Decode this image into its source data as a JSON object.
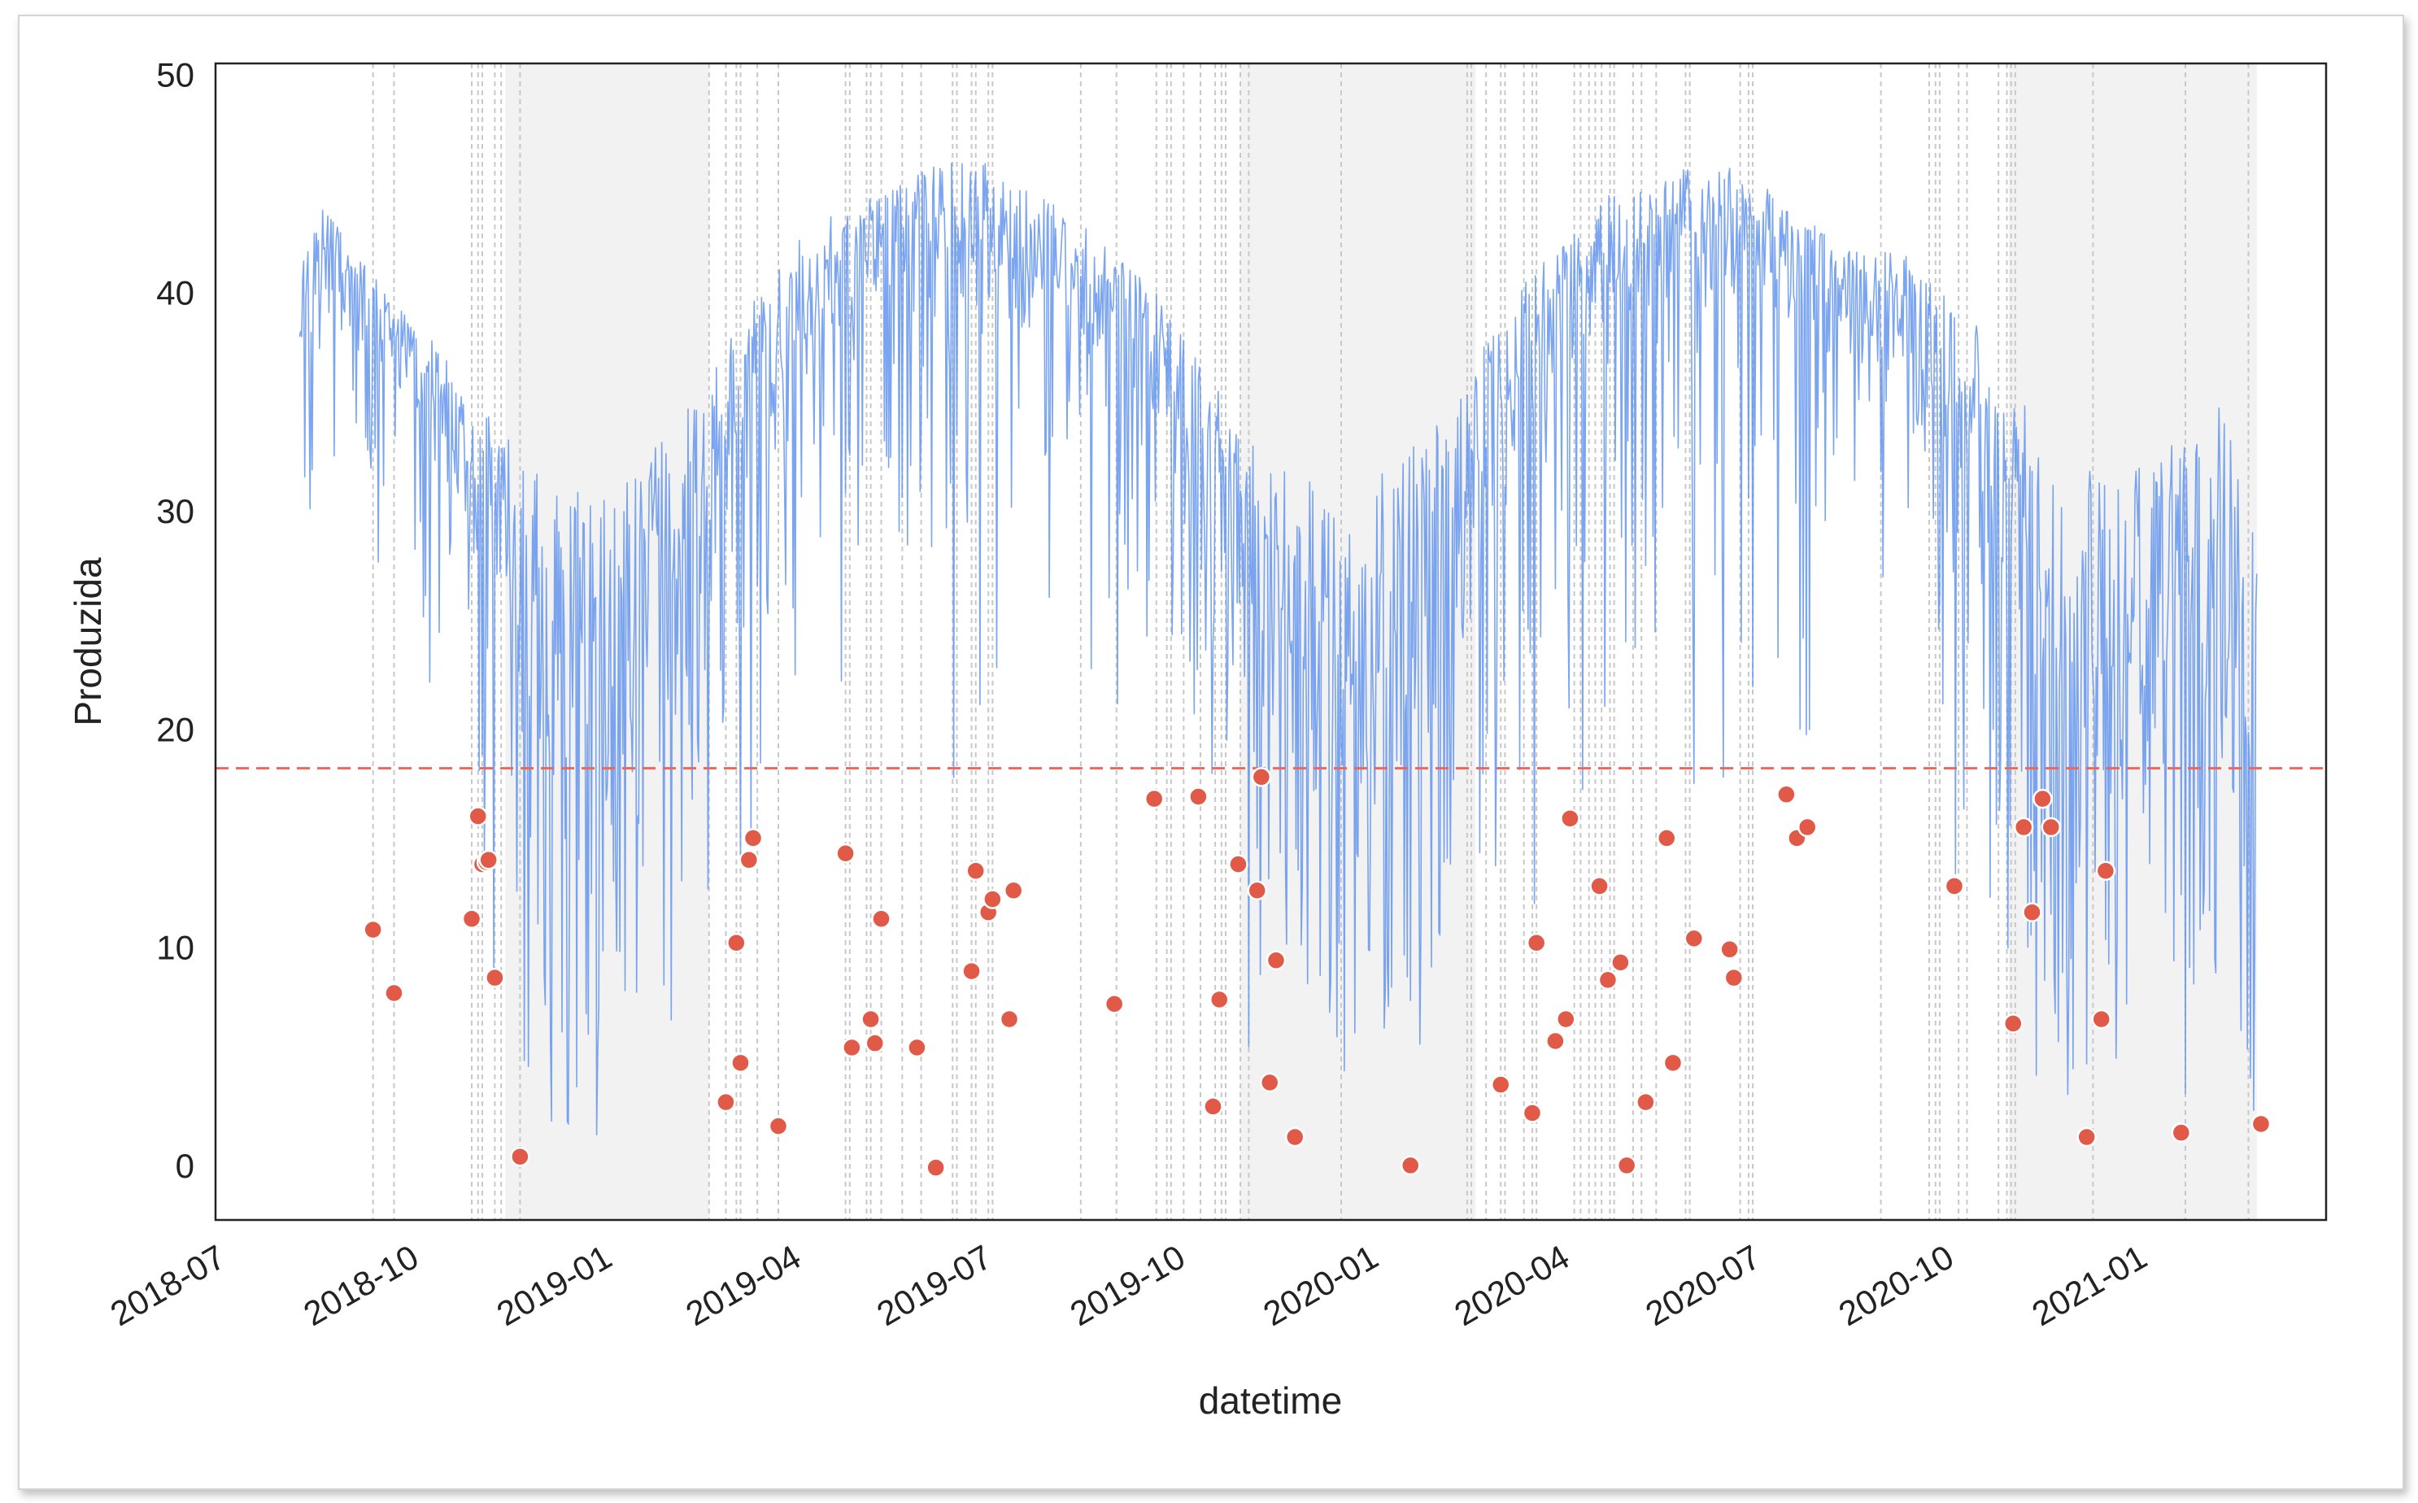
{
  "chart_data": {
    "type": "line",
    "xlabel": "datetime",
    "ylabel": "Produzida",
    "xlim": [
      "2018-07-01",
      "2021-04-01"
    ],
    "ylim": [
      -2.5,
      50.5
    ],
    "x_ticks": [
      "2018-07",
      "2018-10",
      "2019-01",
      "2019-04",
      "2019-07",
      "2019-10",
      "2020-01",
      "2020-04",
      "2020-07",
      "2020-10",
      "2021-01"
    ],
    "y_ticks": [
      0,
      10,
      20,
      30,
      40,
      50
    ],
    "grid": false,
    "legend": "none",
    "colors": {
      "series": "#6495ed",
      "anomaly": "#e05a47",
      "threshold": "#e66a5e",
      "shade": "#f2f2f2",
      "vline": "#c8c8c8"
    },
    "line_series": {
      "date_range": [
        "2018-08-10",
        "2021-02-27"
      ],
      "envelope_upper": [
        [
          "2018-08-10",
          41
        ],
        [
          "2018-08-20",
          44
        ],
        [
          "2018-09-05",
          42
        ],
        [
          "2018-09-25",
          39.5
        ],
        [
          "2018-10-15",
          37.5
        ],
        [
          "2018-11-01",
          35
        ],
        [
          "2018-11-20",
          34
        ],
        [
          "2018-12-10",
          31
        ],
        [
          "2019-01-01",
          31
        ],
        [
          "2019-02-01",
          34
        ],
        [
          "2019-02-20",
          36
        ],
        [
          "2019-03-15",
          40
        ],
        [
          "2019-04-05",
          43
        ],
        [
          "2019-04-25",
          44
        ],
        [
          "2019-05-20",
          45
        ],
        [
          "2019-06-25",
          46.5
        ],
        [
          "2019-07-20",
          45
        ],
        [
          "2019-08-20",
          43
        ],
        [
          "2019-09-15",
          41
        ],
        [
          "2019-10-05",
          38
        ],
        [
          "2019-10-25",
          35
        ],
        [
          "2019-11-20",
          32
        ],
        [
          "2019-12-15",
          31
        ],
        [
          "2020-01-10",
          32
        ],
        [
          "2020-02-01",
          34
        ],
        [
          "2020-02-25",
          38
        ],
        [
          "2020-03-20",
          41
        ],
        [
          "2020-04-15",
          44
        ],
        [
          "2020-05-15",
          45.5
        ],
        [
          "2020-06-20",
          46
        ],
        [
          "2020-07-20",
          44
        ],
        [
          "2020-08-20",
          42
        ],
        [
          "2020-09-10",
          42
        ],
        [
          "2020-09-25",
          40.5
        ],
        [
          "2020-10-15",
          39
        ],
        [
          "2020-11-01",
          36
        ],
        [
          "2020-11-20",
          33
        ],
        [
          "2020-12-20",
          32
        ],
        [
          "2021-01-15",
          33
        ],
        [
          "2021-02-10",
          35
        ],
        [
          "2021-02-27",
          29
        ]
      ],
      "envelope_lower": [
        [
          "2018-08-10",
          34
        ],
        [
          "2018-08-20",
          38
        ],
        [
          "2018-09-05",
          37
        ],
        [
          "2018-09-25",
          35
        ],
        [
          "2018-10-15",
          32
        ],
        [
          "2018-11-01",
          26
        ],
        [
          "2018-11-20",
          14
        ],
        [
          "2018-12-10",
          10
        ],
        [
          "2019-01-01",
          10
        ],
        [
          "2019-02-01",
          12
        ],
        [
          "2019-02-20",
          22
        ],
        [
          "2019-03-15",
          30
        ],
        [
          "2019-04-05",
          34
        ],
        [
          "2019-04-25",
          36
        ],
        [
          "2019-05-20",
          38
        ],
        [
          "2019-06-25",
          38
        ],
        [
          "2019-07-20",
          37
        ],
        [
          "2019-08-20",
          36
        ],
        [
          "2019-09-15",
          34
        ],
        [
          "2019-10-05",
          30
        ],
        [
          "2019-10-25",
          22
        ],
        [
          "2019-11-20",
          12
        ],
        [
          "2019-12-15",
          10
        ],
        [
          "2020-01-10",
          10
        ],
        [
          "2020-02-01",
          13
        ],
        [
          "2020-02-25",
          25
        ],
        [
          "2020-03-20",
          32
        ],
        [
          "2020-04-15",
          35
        ],
        [
          "2020-05-15",
          38
        ],
        [
          "2020-06-20",
          39
        ],
        [
          "2020-07-20",
          38
        ],
        [
          "2020-08-20",
          36
        ],
        [
          "2020-09-10",
          34
        ],
        [
          "2020-09-25",
          30
        ],
        [
          "2020-10-15",
          27
        ],
        [
          "2020-11-01",
          20
        ],
        [
          "2020-11-20",
          12
        ],
        [
          "2020-12-20",
          11
        ],
        [
          "2021-01-15",
          12
        ],
        [
          "2021-02-10",
          14
        ],
        [
          "2021-02-27",
          3
        ]
      ],
      "dip_depth": [
        [
          "2018-08-10",
          28
        ],
        [
          "2018-09-20",
          25
        ],
        [
          "2018-10-20",
          12
        ],
        [
          "2018-11-15",
          5
        ],
        [
          "2018-12-15",
          1
        ],
        [
          "2019-01-20",
          1
        ],
        [
          "2019-02-20",
          8
        ],
        [
          "2019-03-20",
          14
        ],
        [
          "2019-04-20",
          18
        ],
        [
          "2019-06-01",
          16
        ],
        [
          "2019-07-15",
          18
        ],
        [
          "2019-08-20",
          22
        ],
        [
          "2019-09-15",
          18
        ],
        [
          "2019-10-20",
          8
        ],
        [
          "2019-11-20",
          2
        ],
        [
          "2019-12-20",
          0.5
        ],
        [
          "2020-01-20",
          2
        ],
        [
          "2020-02-20",
          8
        ],
        [
          "2020-03-20",
          12
        ],
        [
          "2020-04-20",
          16
        ],
        [
          "2020-06-01",
          14
        ],
        [
          "2020-07-15",
          18
        ],
        [
          "2020-08-20",
          22
        ],
        [
          "2020-09-20",
          16
        ],
        [
          "2020-10-20",
          8
        ],
        [
          "2020-11-20",
          3
        ],
        [
          "2020-12-20",
          2
        ],
        [
          "2021-01-20",
          2
        ],
        [
          "2021-02-27",
          2
        ]
      ]
    },
    "threshold": {
      "y": 18.2,
      "style": "dashed"
    },
    "shaded_regions": [
      [
        "2018-11-16",
        "2019-02-21"
      ],
      [
        "2019-11-01",
        "2020-02-21"
      ],
      [
        "2020-11-01",
        "2021-02-27"
      ]
    ],
    "anomaly_vlines": [
      "2018-09-14",
      "2018-09-24",
      "2018-10-31",
      "2018-11-03",
      "2018-11-05",
      "2018-11-11",
      "2018-11-14",
      "2018-11-23",
      "2019-02-21",
      "2019-03-01",
      "2019-03-06",
      "2019-03-08",
      "2019-03-16",
      "2019-03-26",
      "2019-04-27",
      "2019-04-29",
      "2019-05-07",
      "2019-05-09",
      "2019-05-14",
      "2019-05-24",
      "2019-06-02",
      "2019-06-17",
      "2019-06-19",
      "2019-06-26",
      "2019-06-28",
      "2019-07-04",
      "2019-07-06",
      "2019-08-17",
      "2019-09-03",
      "2019-09-22",
      "2019-09-27",
      "2019-09-29",
      "2019-10-05",
      "2019-10-13",
      "2019-10-20",
      "2019-10-23",
      "2019-10-25",
      "2019-11-01",
      "2019-11-05",
      "2019-12-19",
      "2020-02-17",
      "2020-02-19",
      "2020-02-26",
      "2020-03-04",
      "2020-03-06",
      "2020-03-15",
      "2020-03-19",
      "2020-03-21",
      "2020-04-08",
      "2020-04-11",
      "2020-04-15",
      "2020-04-18",
      "2020-04-21",
      "2020-04-25",
      "2020-04-27",
      "2020-05-06",
      "2020-05-10",
      "2020-05-17",
      "2020-05-31",
      "2020-06-02",
      "2020-06-26",
      "2020-06-30",
      "2020-07-02",
      "2020-09-01",
      "2020-09-24",
      "2020-09-27",
      "2020-09-29",
      "2020-10-08",
      "2020-10-12",
      "2020-10-27",
      "2020-10-31",
      "2020-11-02",
      "2020-11-04",
      "2020-12-11",
      "2021-01-24",
      "2021-02-23"
    ],
    "anomalies": [
      [
        "2018-09-14",
        10.8
      ],
      [
        "2018-09-24",
        7.9
      ],
      [
        "2018-10-31",
        11.3
      ],
      [
        "2018-11-03",
        16
      ],
      [
        "2018-11-05",
        13.8
      ],
      [
        "2018-11-07",
        13.9
      ],
      [
        "2018-11-08",
        14
      ],
      [
        "2018-11-11",
        8.6
      ],
      [
        "2018-11-23",
        0.4
      ],
      [
        "2019-03-01",
        2.9
      ],
      [
        "2019-03-06",
        10.2
      ],
      [
        "2019-03-08",
        4.7
      ],
      [
        "2019-03-12",
        14
      ],
      [
        "2019-03-14",
        15
      ],
      [
        "2019-03-26",
        1.8
      ],
      [
        "2019-04-27",
        14.3
      ],
      [
        "2019-04-30",
        5.4
      ],
      [
        "2019-05-09",
        6.7
      ],
      [
        "2019-05-11",
        5.6
      ],
      [
        "2019-05-14",
        11.3
      ],
      [
        "2019-05-31",
        5.4
      ],
      [
        "2019-06-09",
        -0.1
      ],
      [
        "2019-06-26",
        8.9
      ],
      [
        "2019-06-28",
        13.5
      ],
      [
        "2019-07-04",
        11.6
      ],
      [
        "2019-07-06",
        12.2
      ],
      [
        "2019-07-14",
        6.7
      ],
      [
        "2019-07-16",
        12.6
      ],
      [
        "2019-09-02",
        7.4
      ],
      [
        "2019-09-21",
        16.8
      ],
      [
        "2019-10-12",
        16.9
      ],
      [
        "2019-10-19",
        2.7
      ],
      [
        "2019-10-22",
        7.6
      ],
      [
        "2019-10-31",
        13.8
      ],
      [
        "2019-11-09",
        12.6
      ],
      [
        "2019-11-11",
        17.8
      ],
      [
        "2019-11-15",
        3.8
      ],
      [
        "2019-11-18",
        9.4
      ],
      [
        "2019-11-27",
        1.3
      ],
      [
        "2020-01-21",
        0
      ],
      [
        "2020-03-04",
        3.7
      ],
      [
        "2020-03-19",
        2.4
      ],
      [
        "2020-03-21",
        10.2
      ],
      [
        "2020-03-30",
        5.7
      ],
      [
        "2020-04-04",
        6.7
      ],
      [
        "2020-04-06",
        15.9
      ],
      [
        "2020-04-20",
        12.8
      ],
      [
        "2020-04-24",
        8.5
      ],
      [
        "2020-04-30",
        9.3
      ],
      [
        "2020-05-03",
        0
      ],
      [
        "2020-05-12",
        2.9
      ],
      [
        "2020-05-22",
        15
      ],
      [
        "2020-05-25",
        4.7
      ],
      [
        "2020-06-04",
        10.4
      ],
      [
        "2020-06-21",
        9.9
      ],
      [
        "2020-06-23",
        8.6
      ],
      [
        "2020-07-18",
        17
      ],
      [
        "2020-07-23",
        15
      ],
      [
        "2020-07-28",
        15.5
      ],
      [
        "2020-10-06",
        12.8
      ],
      [
        "2020-11-03",
        6.5
      ],
      [
        "2020-11-08",
        15.5
      ],
      [
        "2020-11-12",
        11.6
      ],
      [
        "2020-11-17",
        16.8
      ],
      [
        "2020-11-21",
        15.5
      ],
      [
        "2020-12-08",
        1.3
      ],
      [
        "2020-12-15",
        6.7
      ],
      [
        "2020-12-17",
        13.5
      ],
      [
        "2021-01-22",
        1.5
      ],
      [
        "2021-03-01",
        1.9
      ]
    ]
  }
}
